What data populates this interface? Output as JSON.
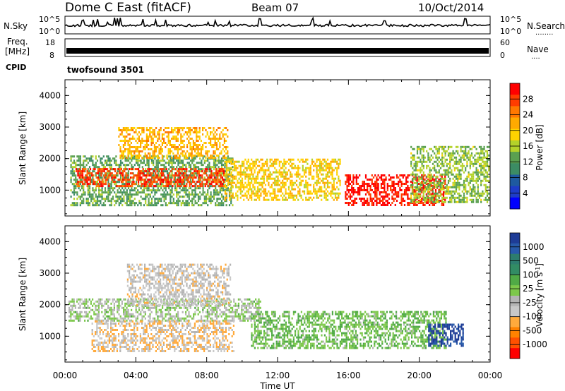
{
  "header": {
    "station": "Dome C East (fitACF)",
    "beam": "Beam 07",
    "date": "10/Oct/2014"
  },
  "panels": {
    "nsky": {
      "label": "N.Sky",
      "tick_top": "10^5",
      "tick_bottom": "10^0",
      "right_top": "10^5",
      "right_bottom": "10^0",
      "right_label": "N.Search",
      "right_marker": "........"
    },
    "freq": {
      "label": "Freq.",
      "unit": "[MHz]",
      "tick_top": "18",
      "tick_bottom": "8",
      "right_top": "60",
      "right_bottom": "0",
      "right_label": "Nave",
      "right_marker": "...."
    },
    "cpid": {
      "label": "CPID",
      "value": "twofsound 3501"
    }
  },
  "colorbars": {
    "power": {
      "label": "Power [dB]",
      "ticks": [
        "28",
        "24",
        "20",
        "16",
        "12",
        "8",
        "4"
      ],
      "colors": [
        "#ff0000",
        "#ff3c00",
        "#ff7800",
        "#ffaa00",
        "#ffd200",
        "#b4d22a",
        "#5aa050",
        "#3c8c64",
        "#1e5aa0",
        "#1e3cc8",
        "#0000ff"
      ]
    },
    "velocity": {
      "label": "Velocity [m s",
      "label_exp": "-1",
      "label_close": "]",
      "ticks": [
        "1000",
        "500",
        "100",
        "25",
        "-25",
        "-100",
        "-500",
        "-1000"
      ],
      "colors": [
        "#1e3c96",
        "#285aaa",
        "#2d7d6e",
        "#328c64",
        "#50aa46",
        "#7dc84b",
        "#b4b4b4",
        "#c8c8c8",
        "#ffaa3c",
        "#ff8200",
        "#ff5000",
        "#ff0000"
      ]
    }
  },
  "chart_data": [
    {
      "type": "heatmap",
      "title": "",
      "quantity": "Power",
      "unit": "dB",
      "xlabel": "Time UT",
      "ylabel": "Slant Range [km]",
      "xlim": [
        "00:00",
        "24:00"
      ],
      "ylim": [
        180,
        4500
      ],
      "x_ticks": [
        "00:00",
        "04:00",
        "08:00",
        "12:00",
        "16:00",
        "20:00",
        "00:00"
      ],
      "y_ticks": [
        "1000",
        "2000",
        "3000",
        "4000"
      ],
      "clim": [
        0,
        30
      ],
      "regions": [
        {
          "t0": 0.3,
          "t1": 9.5,
          "r0": 500,
          "r1": 2100,
          "value": 12
        },
        {
          "t0": 0.6,
          "t1": 9.0,
          "r0": 1100,
          "r1": 1700,
          "value": 26
        },
        {
          "t0": 3.0,
          "t1": 9.2,
          "r0": 2000,
          "r1": 3000,
          "value": 20
        },
        {
          "t0": 9.0,
          "t1": 15.5,
          "r0": 700,
          "r1": 2000,
          "value": 18
        },
        {
          "t0": 15.8,
          "t1": 21.5,
          "r0": 500,
          "r1": 1500,
          "value": 28
        },
        {
          "t0": 19.5,
          "t1": 23.9,
          "r0": 600,
          "r1": 2400,
          "value": 14
        }
      ]
    },
    {
      "type": "heatmap",
      "title": "",
      "quantity": "Velocity",
      "unit": "m s-1",
      "xlabel": "Time UT",
      "ylabel": "Slant Range [km]",
      "xlim": [
        "00:00",
        "24:00"
      ],
      "ylim": [
        180,
        4500
      ],
      "x_ticks": [
        "00:00",
        "04:00",
        "08:00",
        "12:00",
        "16:00",
        "20:00",
        "00:00"
      ],
      "y_ticks": [
        "1000",
        "2000",
        "3000",
        "4000"
      ],
      "clim": [
        -1000,
        1000
      ],
      "regions": [
        {
          "t0": 0.2,
          "t1": 11.0,
          "r0": 1500,
          "r1": 2200,
          "value": 0
        },
        {
          "t0": 1.5,
          "t1": 9.5,
          "r0": 500,
          "r1": 1500,
          "value": -300
        },
        {
          "t0": 3.5,
          "t1": 9.3,
          "r0": 2000,
          "r1": 3300,
          "value": -200
        },
        {
          "t0": 10.5,
          "t1": 21.5,
          "r0": 600,
          "r1": 1800,
          "value": 150
        },
        {
          "t0": 20.5,
          "t1": 22.5,
          "r0": 700,
          "r1": 1400,
          "value": 900
        }
      ]
    }
  ]
}
